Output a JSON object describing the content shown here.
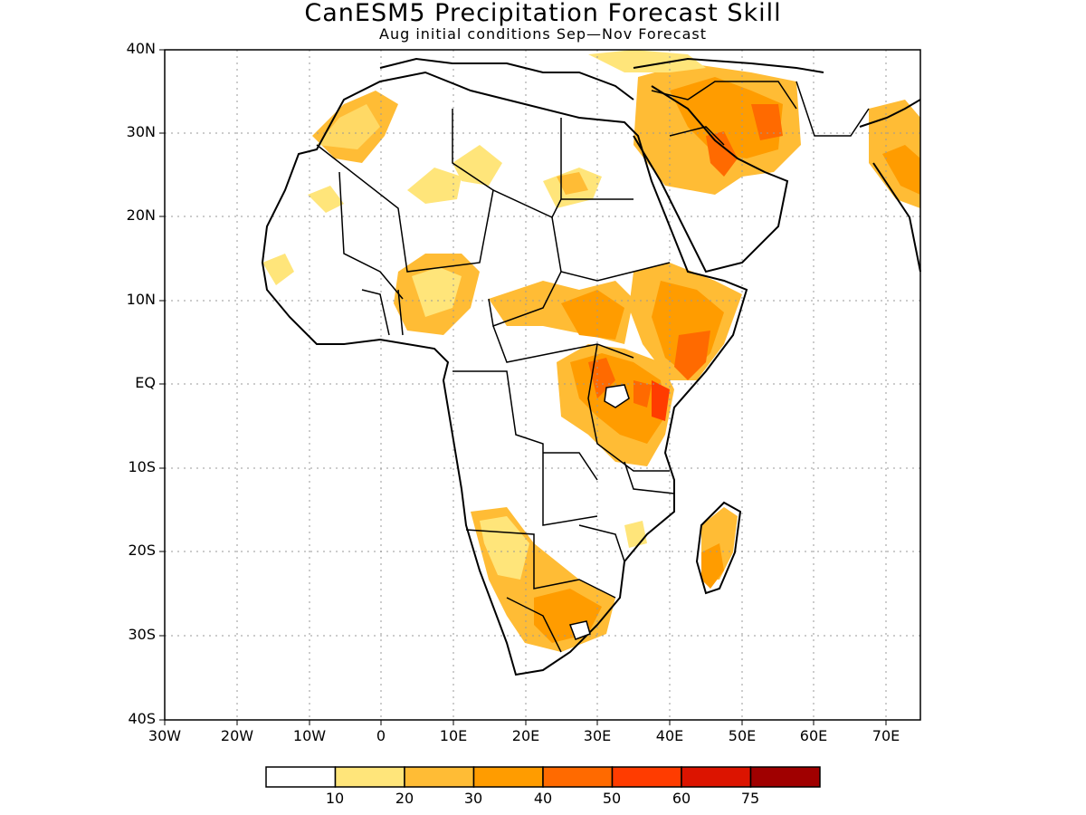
{
  "title": "CanESM5 Precipitation Forecast Skill",
  "subtitle": "Aug initial conditions  Sep—Nov Forecast",
  "axes": {
    "y_labels": [
      "40N",
      "30N",
      "20N",
      "10N",
      "EQ",
      "10S",
      "20S",
      "30S",
      "40S"
    ],
    "x_labels": [
      "30W",
      "20W",
      "10W",
      "0",
      "10E",
      "20E",
      "30E",
      "40E",
      "50E",
      "60E",
      "70E"
    ]
  },
  "colorbar": {
    "labels": [
      "10",
      "20",
      "30",
      "40",
      "50",
      "60",
      "75"
    ],
    "colors": [
      "#ffffff",
      "#ffe57a",
      "#ffbc35",
      "#ff9c00",
      "#ff6a00",
      "#ff3c00",
      "#dc1400",
      "#a00000"
    ]
  }
}
